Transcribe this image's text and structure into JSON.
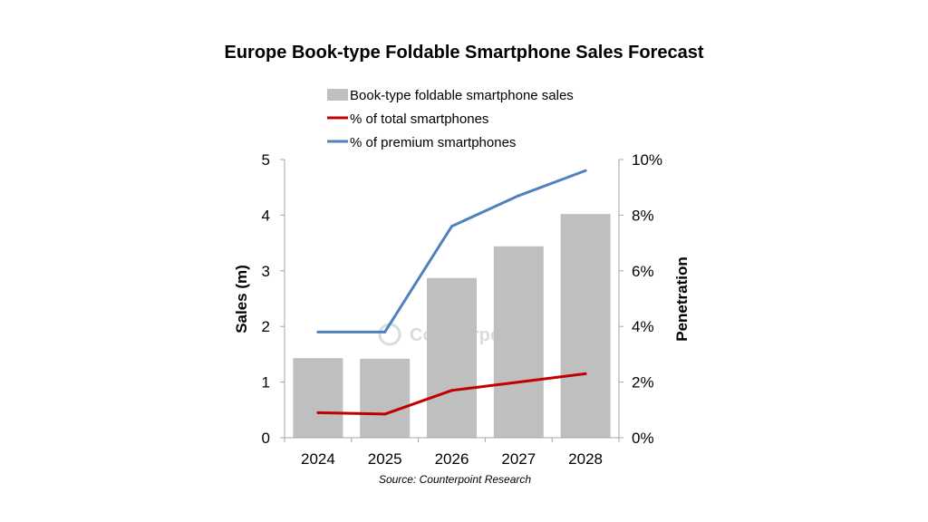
{
  "chart_data": {
    "type": "bar",
    "title": "Europe Book-type Foldable Smartphone Sales Forecast",
    "categories": [
      "2024",
      "2025",
      "2026",
      "2027",
      "2028"
    ],
    "bar_series": {
      "name": "Book-type foldable smartphone sales",
      "values": [
        1.43,
        1.42,
        2.87,
        3.44,
        4.02
      ],
      "color": "#bfbfbf"
    },
    "line_series": [
      {
        "name": "% of total smartphones",
        "values": [
          0.9,
          0.85,
          1.7,
          2.0,
          2.3
        ],
        "color": "#c00000"
      },
      {
        "name": "% of premium smartphones",
        "values": [
          3.8,
          3.8,
          7.6,
          8.7,
          9.6
        ],
        "color": "#4f81bd"
      }
    ],
    "ylabel": "Sales (m)",
    "ylim": [
      0,
      5
    ],
    "yticks": [
      "0",
      "1",
      "2",
      "3",
      "4",
      "5"
    ],
    "y2label": "Penetration",
    "y2lim": [
      0,
      10
    ],
    "y2ticks": [
      "0%",
      "2%",
      "4%",
      "6%",
      "8%",
      "10%"
    ],
    "legend_position": "top",
    "grid": false,
    "source": "Source: Counterpoint Research",
    "watermark": "Counterpoint"
  }
}
